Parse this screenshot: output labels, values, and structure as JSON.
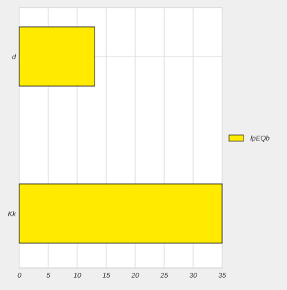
{
  "chart_data": {
    "type": "bar",
    "orientation": "horizontal",
    "categories": [
      "d",
      "Kk"
    ],
    "series": [
      {
        "name": "lpEQb",
        "values": [
          13,
          35
        ]
      }
    ],
    "xlim": [
      0,
      35
    ],
    "xticks": [
      0,
      5,
      10,
      15,
      20,
      25,
      30,
      35
    ],
    "grid": true,
    "legend_position": "right",
    "colors": {
      "bar_fill": "#ffea00",
      "bar_stroke": "#222222",
      "grid": "#d9d9d9",
      "plot_background": "#ffffff",
      "page_background": "#efefef"
    }
  }
}
